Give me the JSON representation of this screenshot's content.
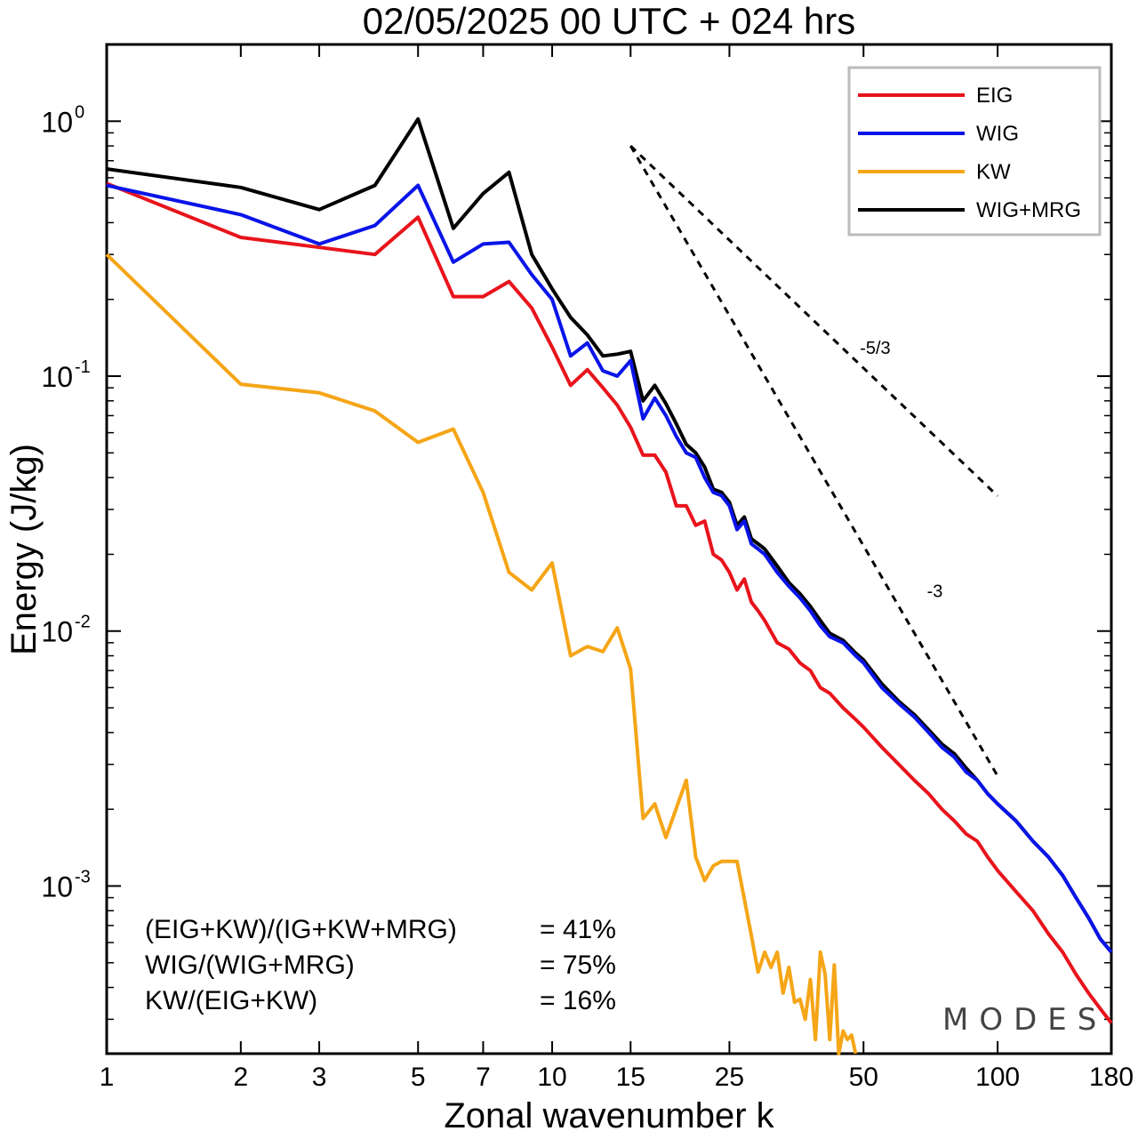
{
  "chart_data": {
    "type": "line",
    "title": "02/05/2025  00 UTC  + 024 hrs",
    "xlabel": "Zonal wavenumber k",
    "ylabel": "Energy (J/kg)",
    "xscale": "log",
    "yscale": "log",
    "xlim": [
      1,
      180
    ],
    "ylim": [
      0.00022,
      2.0
    ],
    "xticks": [
      1,
      2,
      3,
      5,
      7,
      10,
      15,
      25,
      50,
      100,
      180
    ],
    "xtick_labels": [
      "1",
      "2",
      "3",
      "5",
      "7",
      "10",
      "15",
      "25",
      "50",
      "100",
      "180"
    ],
    "yticks": [
      {
        "value": 1.0,
        "base": "10",
        "exp": "0"
      },
      {
        "value": 0.1,
        "base": "10",
        "exp": "-1"
      },
      {
        "value": 0.01,
        "base": "10",
        "exp": "-2"
      },
      {
        "value": 0.001,
        "base": "10",
        "exp": "-3"
      }
    ],
    "grid": false,
    "legend_position": "top-right",
    "series": [
      {
        "name": "EIG",
        "color": "#e8141c",
        "x": [
          1,
          2,
          3,
          4,
          5,
          6,
          7,
          8,
          9,
          10,
          11,
          12,
          13,
          14,
          15,
          16,
          17,
          18,
          19,
          20,
          21,
          22,
          23,
          24,
          25,
          26,
          27,
          28,
          29,
          30,
          32,
          34,
          36,
          38,
          40,
          42,
          45,
          48,
          50,
          55,
          60,
          65,
          70,
          75,
          80,
          85,
          90,
          95,
          100,
          110,
          120,
          130,
          140,
          150,
          160,
          170,
          180
        ],
        "y": [
          0.57,
          0.35,
          0.32,
          0.3,
          0.42,
          0.205,
          0.205,
          0.235,
          0.185,
          0.13,
          0.092,
          0.106,
          0.09,
          0.077,
          0.063,
          0.049,
          0.049,
          0.042,
          0.031,
          0.031,
          0.026,
          0.027,
          0.02,
          0.019,
          0.017,
          0.0145,
          0.016,
          0.013,
          0.012,
          0.011,
          0.009,
          0.0085,
          0.0075,
          0.007,
          0.006,
          0.0057,
          0.005,
          0.0045,
          0.0042,
          0.0035,
          0.003,
          0.0026,
          0.0023,
          0.002,
          0.0018,
          0.0016,
          0.0015,
          0.0013,
          0.00115,
          0.00095,
          0.0008,
          0.00065,
          0.00055,
          0.00045,
          0.00038,
          0.00033,
          0.00029
        ]
      },
      {
        "name": "WIG",
        "color": "#0a14e8",
        "x": [
          1,
          2,
          3,
          4,
          5,
          6,
          7,
          8,
          9,
          10,
          11,
          12,
          13,
          14,
          15,
          16,
          17,
          18,
          19,
          20,
          21,
          22,
          23,
          24,
          25,
          26,
          27,
          28,
          29,
          30,
          32,
          34,
          36,
          38,
          40,
          42,
          45,
          48,
          50,
          55,
          60,
          65,
          70,
          75,
          80,
          85,
          90,
          95,
          100,
          110,
          120,
          130,
          140,
          150,
          160,
          170,
          180
        ],
        "y": [
          0.56,
          0.43,
          0.33,
          0.39,
          0.56,
          0.28,
          0.33,
          0.335,
          0.25,
          0.2,
          0.12,
          0.135,
          0.105,
          0.1,
          0.115,
          0.068,
          0.082,
          0.07,
          0.058,
          0.05,
          0.048,
          0.04,
          0.035,
          0.034,
          0.031,
          0.025,
          0.027,
          0.022,
          0.021,
          0.02,
          0.017,
          0.015,
          0.0135,
          0.012,
          0.0105,
          0.0095,
          0.009,
          0.008,
          0.0075,
          0.006,
          0.0052,
          0.0046,
          0.004,
          0.0035,
          0.0032,
          0.0028,
          0.0026,
          0.0023,
          0.0021,
          0.0018,
          0.0015,
          0.0013,
          0.0011,
          0.0009,
          0.00075,
          0.00062,
          0.00055
        ]
      },
      {
        "name": "KW",
        "color": "#f5a516",
        "x": [
          1,
          2,
          3,
          4,
          5,
          6,
          7,
          8,
          9,
          10,
          11,
          12,
          13,
          14,
          15,
          16,
          17,
          18,
          20,
          21,
          22,
          23,
          24,
          26,
          28,
          29,
          30,
          31,
          32,
          33,
          34,
          35,
          36,
          37,
          38,
          39,
          40,
          41,
          42,
          43,
          44,
          45,
          46,
          47,
          48
        ],
        "y": [
          0.3,
          0.093,
          0.086,
          0.073,
          0.055,
          0.062,
          0.035,
          0.017,
          0.0145,
          0.0185,
          0.008,
          0.0087,
          0.0083,
          0.0103,
          0.0071,
          0.00184,
          0.0021,
          0.00155,
          0.0026,
          0.0013,
          0.00105,
          0.0012,
          0.00125,
          0.00125,
          0.00064,
          0.00046,
          0.00055,
          0.00048,
          0.00055,
          0.00038,
          0.00048,
          0.00035,
          0.00036,
          0.0003,
          0.00043,
          0.00025,
          0.00055,
          0.00045,
          0.00025,
          0.00049,
          0.00022,
          0.00027,
          0.00025,
          0.00026,
          0.00022
        ]
      },
      {
        "name": "WIG+MRG",
        "color": "#000000",
        "x": [
          1,
          2,
          3,
          4,
          5,
          6,
          7,
          8,
          9,
          10,
          11,
          12,
          13,
          14,
          15,
          16,
          17,
          18,
          19,
          20,
          21,
          22,
          23,
          24,
          25,
          26,
          27,
          28,
          29,
          30,
          32,
          34,
          36,
          38,
          40,
          42,
          45,
          48,
          50,
          55,
          60,
          65,
          70,
          75,
          80,
          85,
          90,
          95,
          100,
          110,
          120,
          130,
          140,
          150,
          160,
          170,
          180
        ],
        "y": [
          0.65,
          0.55,
          0.45,
          0.56,
          1.02,
          0.38,
          0.52,
          0.63,
          0.3,
          0.22,
          0.17,
          0.145,
          0.12,
          0.122,
          0.125,
          0.08,
          0.092,
          0.078,
          0.065,
          0.054,
          0.05,
          0.044,
          0.036,
          0.035,
          0.032,
          0.026,
          0.028,
          0.023,
          0.022,
          0.021,
          0.018,
          0.0155,
          0.014,
          0.0125,
          0.011,
          0.0098,
          0.0092,
          0.0082,
          0.0077,
          0.0062,
          0.0053,
          0.0047,
          0.0041,
          0.0036,
          0.0033,
          0.0029,
          0.0026,
          0.0023,
          0.0021,
          0.0018,
          0.0015,
          0.0013,
          0.0011,
          0.0009,
          0.00075,
          0.00062,
          0.00055
        ]
      }
    ],
    "reference_lines": [
      {
        "label": "-5/3",
        "slope": -1.6667,
        "x_start": 15,
        "y_start": 0.8,
        "x_end": 100,
        "style": "dashed"
      },
      {
        "label": "-3",
        "slope": -3,
        "x_start": 15,
        "y_start": 0.8,
        "x_end": 100,
        "style": "dashed"
      }
    ],
    "annotations": [
      {
        "label": "(EIG+KW)/(IG+KW+MRG)",
        "value": "= 41%"
      },
      {
        "label": "WIG/(WIG+MRG)",
        "value": "= 75%"
      },
      {
        "label": "KW/(EIG+KW)",
        "value": "= 16%"
      }
    ],
    "watermark": "MODES"
  }
}
